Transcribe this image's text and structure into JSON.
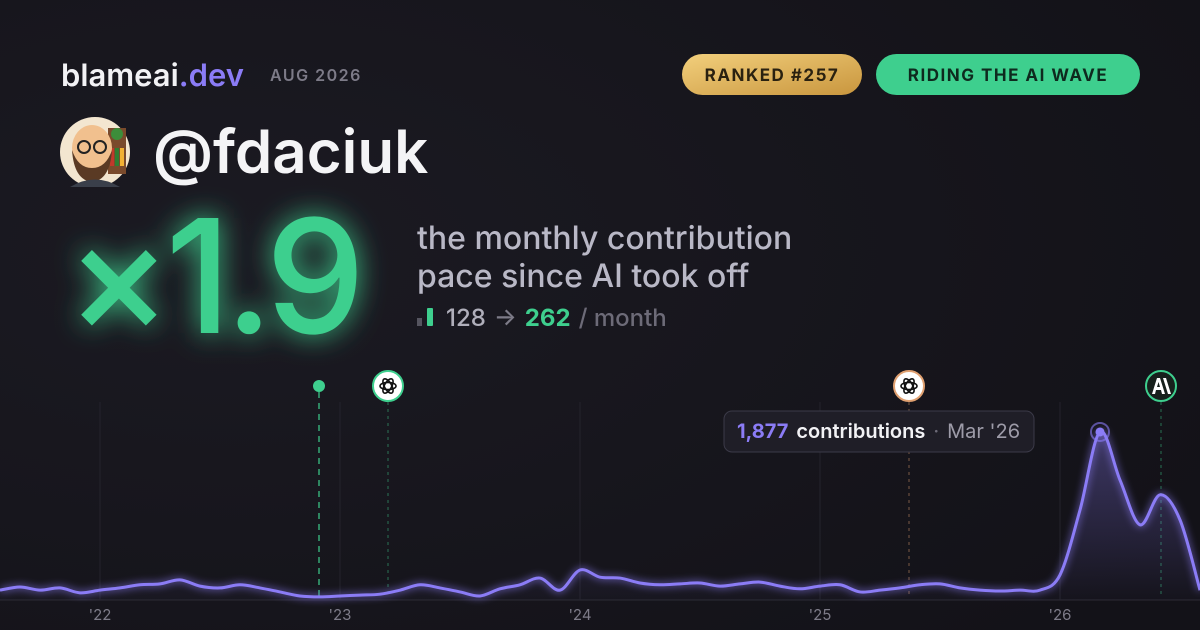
{
  "header": {
    "brand": "blameai",
    "brand_tld": ".dev",
    "period": "AUG 2026",
    "badges": [
      "RANKED #257",
      "RIDING THE AI WAVE"
    ]
  },
  "profile": {
    "handle": "@fdaciuk"
  },
  "headline": {
    "multiplier": "×1.9",
    "description_line1": "the monthly contribution",
    "description_line2": "pace since AI took off",
    "before": 128,
    "arrow": "→",
    "after": 262,
    "unit": "/ month"
  },
  "chart_data": {
    "type": "line",
    "color": "#8b7cf6",
    "categories": [
      null,
      null,
      null,
      null,
      null,
      "'22",
      null,
      null,
      null,
      null,
      null,
      null,
      null,
      null,
      null,
      null,
      null,
      "'23",
      null,
      null,
      null,
      null,
      null,
      null,
      null,
      null,
      null,
      null,
      null,
      "'24",
      null,
      null,
      null,
      null,
      null,
      null,
      null,
      null,
      null,
      null,
      null,
      "'25",
      null,
      null,
      null,
      null,
      null,
      null,
      null,
      null,
      null,
      null,
      null,
      "'26",
      null,
      null,
      null,
      null,
      null,
      null,
      null
    ],
    "values": [
      110,
      145,
      110,
      135,
      80,
      110,
      135,
      170,
      180,
      225,
      155,
      135,
      170,
      135,
      90,
      45,
      35,
      45,
      55,
      65,
      110,
      170,
      135,
      90,
      45,
      125,
      170,
      245,
      110,
      335,
      255,
      245,
      190,
      170,
      180,
      190,
      155,
      180,
      200,
      155,
      125,
      155,
      170,
      90,
      110,
      135,
      170,
      180,
      135,
      110,
      100,
      110,
      110,
      280,
      1005,
      1877,
      1340,
      840,
      1175,
      895,
      110
    ],
    "ylim": [
      0,
      2100
    ],
    "tooltip": {
      "value_label": "1,877",
      "unit": "contributions",
      "separator": "·",
      "date": "Mar '26"
    }
  }
}
